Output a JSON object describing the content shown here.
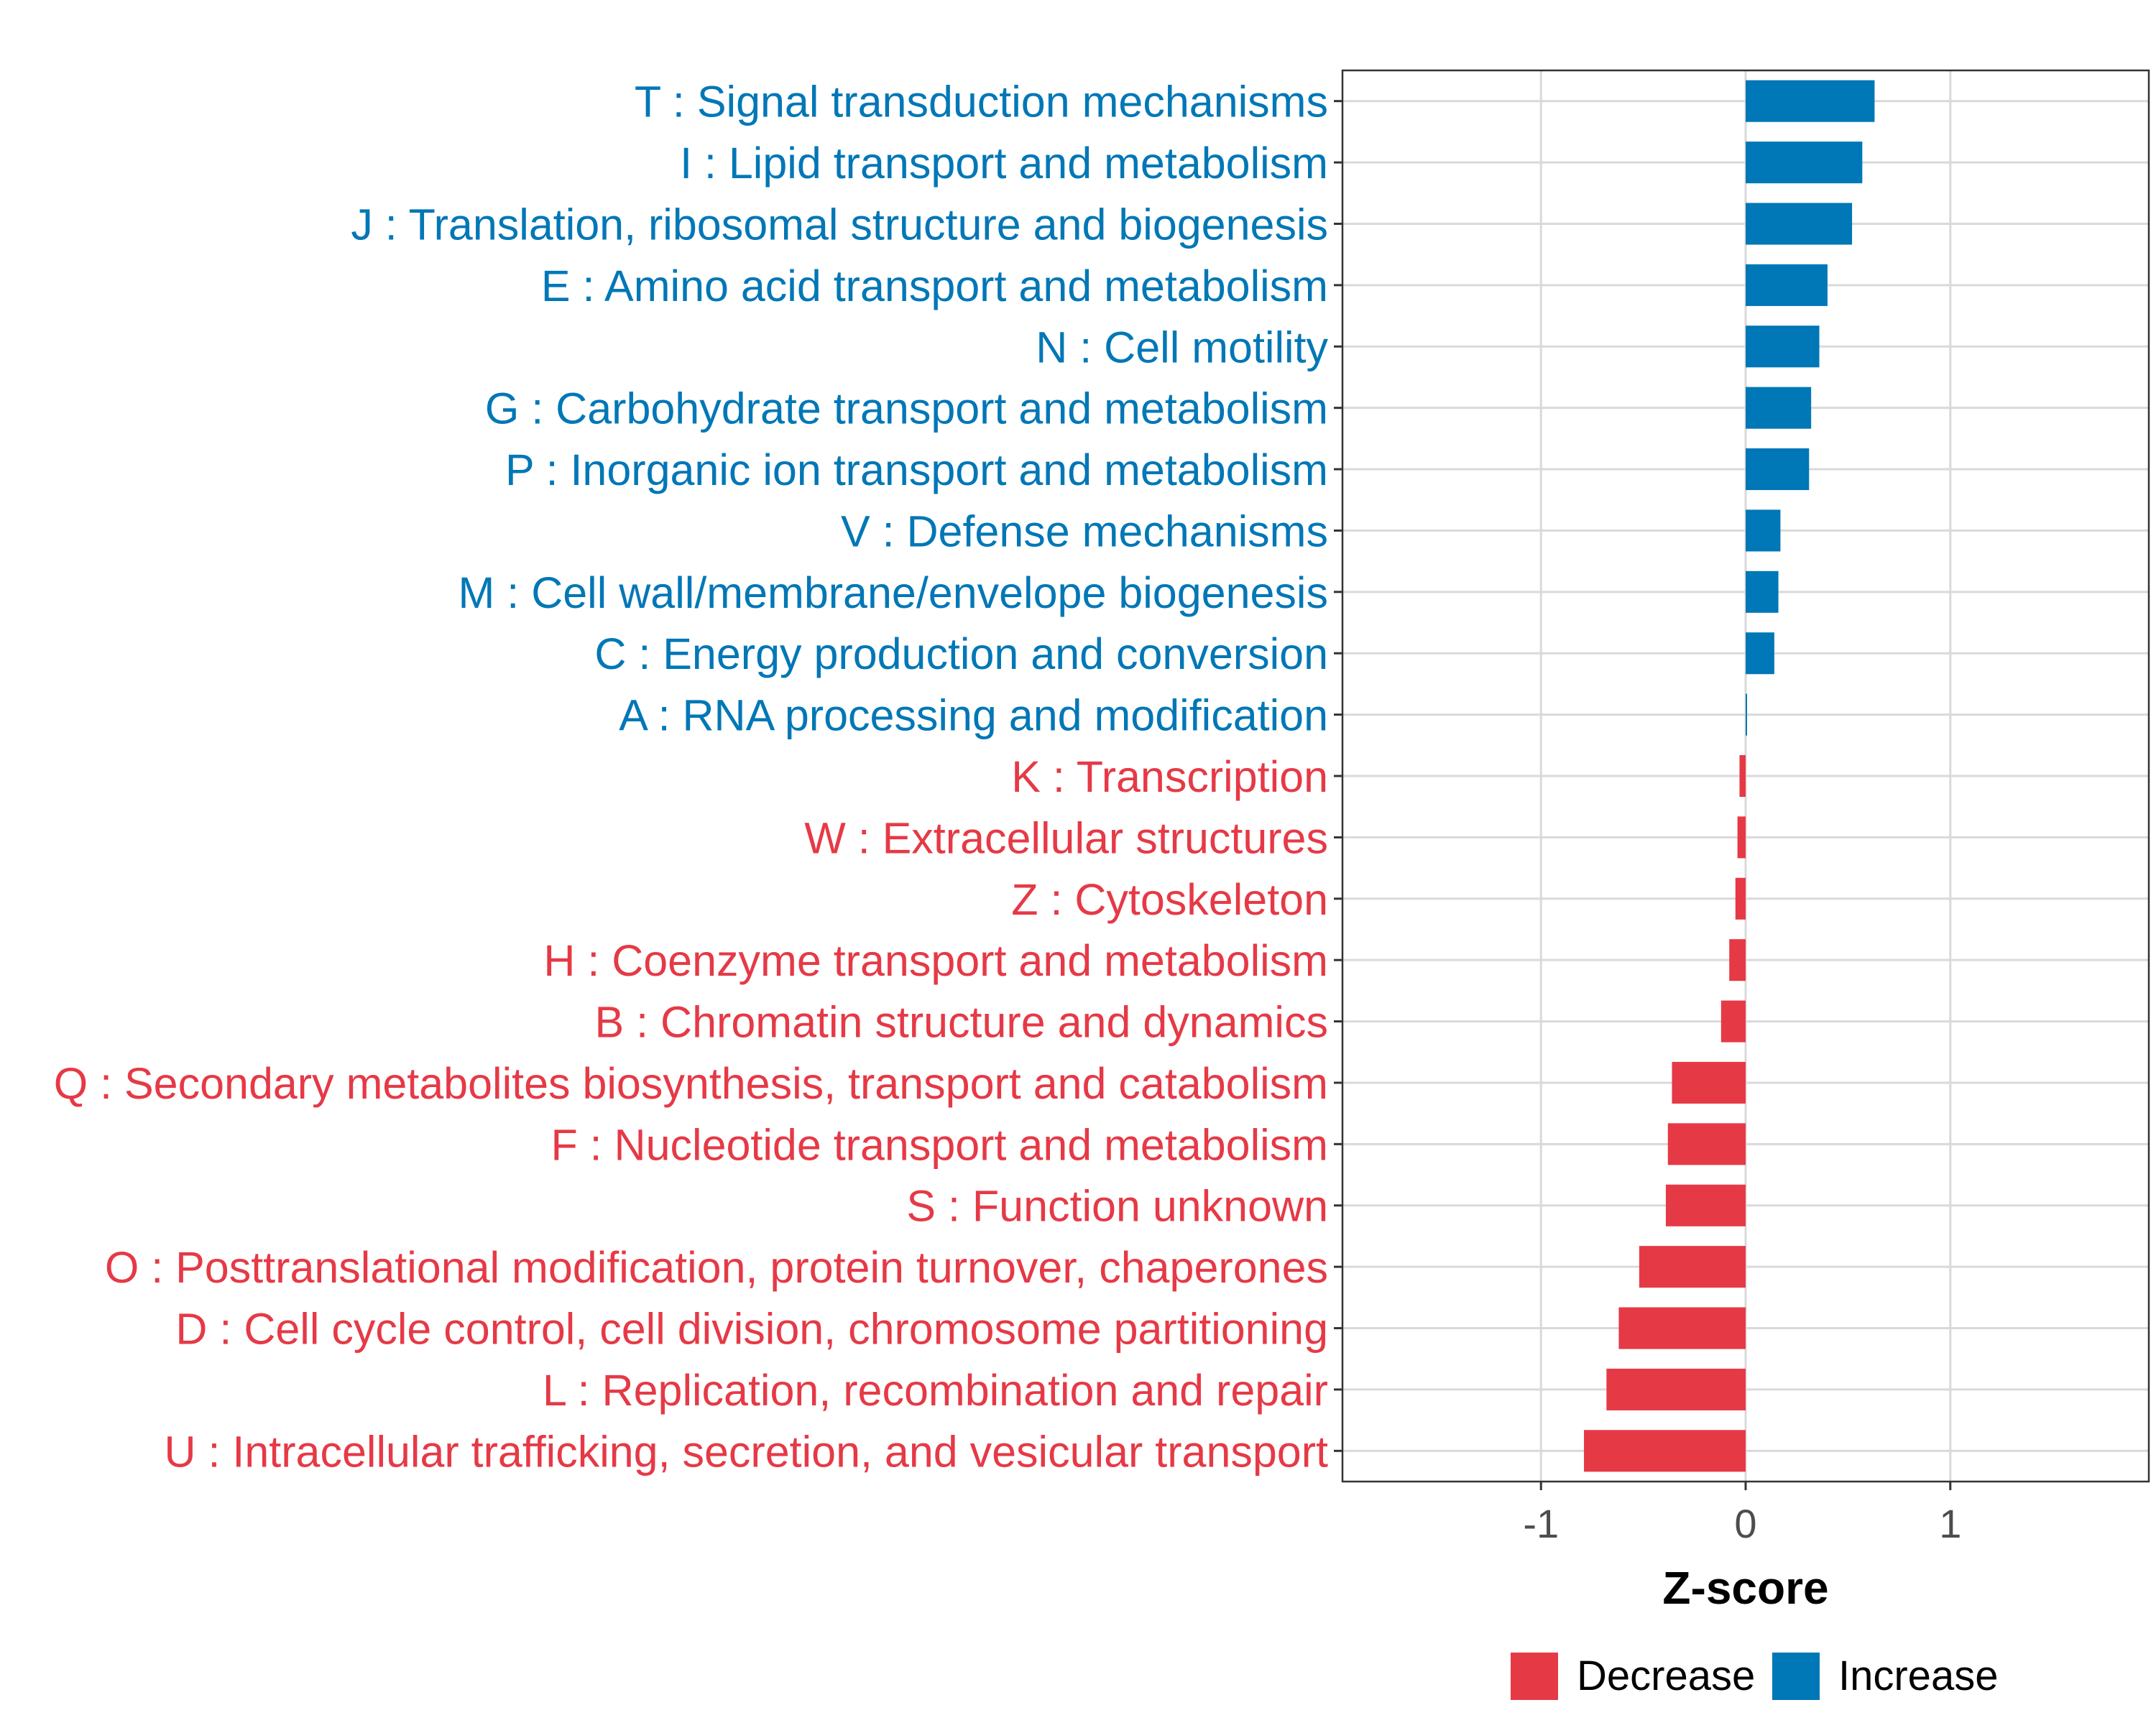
{
  "chart_data": {
    "type": "bar",
    "orientation": "horizontal",
    "title": "",
    "xlabel": "Z-score",
    "ylabel": "",
    "xlim": [
      -1.97,
      1.97
    ],
    "xticks": [
      -1,
      0,
      1
    ],
    "xtick_labels": [
      "-1",
      "0",
      "1"
    ],
    "grid": true,
    "legend_position": "bottom",
    "colors": {
      "Decrease": "#E63946",
      "Increase": "#0077B6"
    },
    "legend": [
      {
        "label": "Decrease",
        "color": "#E63946"
      },
      {
        "label": "Increase",
        "color": "#0077B6"
      }
    ],
    "categories": [
      "T : Signal transduction mechanisms",
      "I : Lipid transport and metabolism",
      "J : Translation, ribosomal structure and biogenesis",
      "E : Amino acid transport and metabolism",
      "N : Cell motility",
      "G : Carbohydrate transport and metabolism",
      "P : Inorganic ion transport and metabolism",
      "V : Defense mechanisms",
      "M : Cell wall/membrane/envelope biogenesis",
      "C : Energy production and conversion",
      "A : RNA processing and modification",
      "K : Transcription",
      "W : Extracellular structures",
      "Z : Cytoskeleton",
      "H : Coenzyme transport and metabolism",
      "B : Chromatin structure and dynamics",
      "Q : Secondary metabolites biosynthesis, transport and catabolism",
      "F : Nucleotide transport and metabolism",
      "S : Function unknown",
      "O : Posttranslational modification, protein turnover, chaperones",
      "D : Cell cycle control, cell division, chromosome partitioning",
      "L : Replication, recombination and repair",
      "U : Intracellular trafficking, secretion, and vesicular transport"
    ],
    "values": [
      0.63,
      0.57,
      0.52,
      0.4,
      0.36,
      0.32,
      0.31,
      0.17,
      0.16,
      0.14,
      0.005,
      -0.03,
      -0.04,
      -0.05,
      -0.08,
      -0.12,
      -0.36,
      -0.38,
      -0.39,
      -0.52,
      -0.62,
      -0.68,
      -0.79
    ],
    "groups": [
      "Increase",
      "Increase",
      "Increase",
      "Increase",
      "Increase",
      "Increase",
      "Increase",
      "Increase",
      "Increase",
      "Increase",
      "Increase",
      "Decrease",
      "Decrease",
      "Decrease",
      "Decrease",
      "Decrease",
      "Decrease",
      "Decrease",
      "Decrease",
      "Decrease",
      "Decrease",
      "Decrease",
      "Decrease"
    ]
  }
}
